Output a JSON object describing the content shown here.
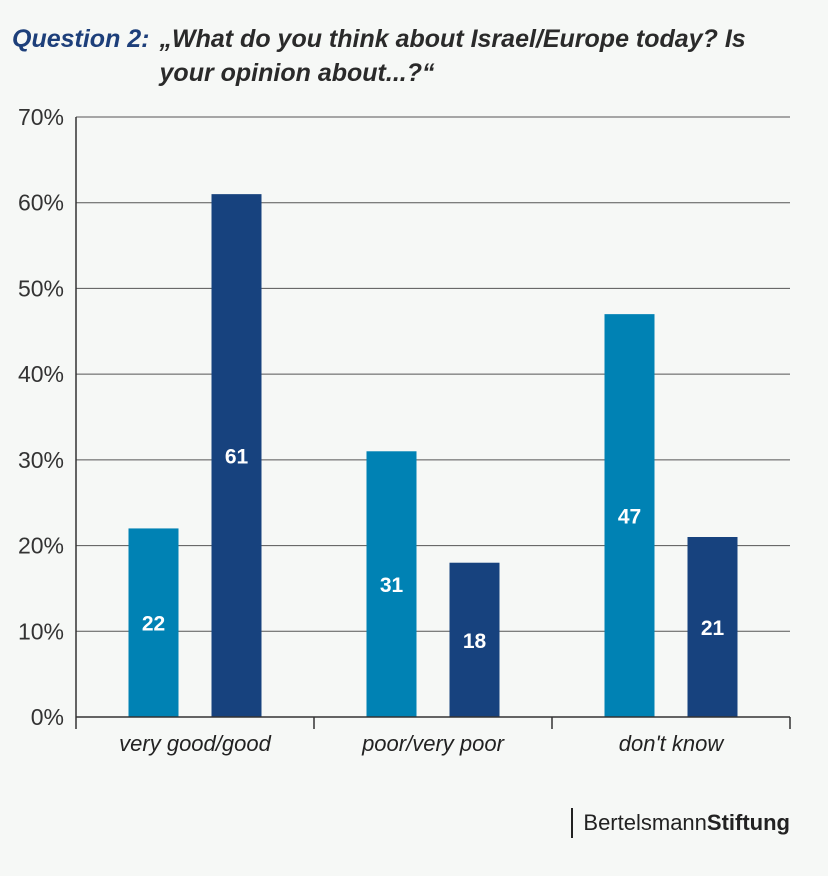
{
  "header": {
    "question_label": "Question 2:",
    "question_text": "„What do you think about Israel/Europe today? Is your opinion about...?“"
  },
  "brand": {
    "name_regular": "Bertelsmann",
    "name_bold": "Stiftung"
  },
  "colors": {
    "series_1": "#0082b4",
    "series_2": "#17427e",
    "grid": "#555555",
    "title_accent": "#1d3f7a"
  },
  "chart_data": {
    "type": "bar",
    "categories": [
      "very good/good",
      "poor/very poor",
      "don't know"
    ],
    "series": [
      {
        "values": [
          22,
          31,
          47
        ],
        "color": "#0082b4"
      },
      {
        "values": [
          61,
          18,
          21
        ],
        "color": "#17427e"
      }
    ],
    "ylim": [
      0,
      70
    ],
    "yticks": [
      0,
      10,
      20,
      30,
      40,
      50,
      60,
      70
    ],
    "ytick_suffix": "%",
    "grid": true,
    "data_labels": true
  }
}
